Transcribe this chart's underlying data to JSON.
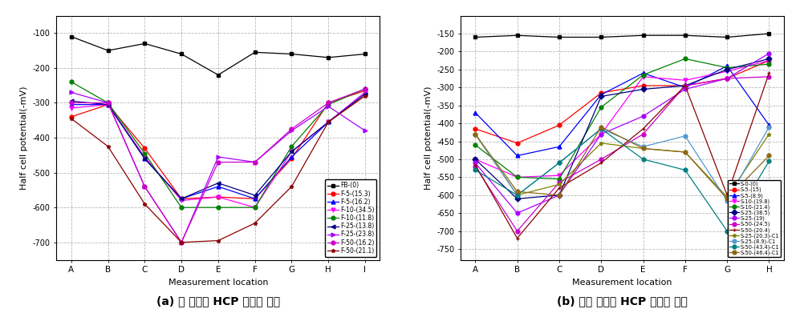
{
  "chart_a": {
    "xlabel": "Measurement location",
    "ylabel": "Half cell potential(-mV)",
    "x_labels": [
      "A",
      "B",
      "C",
      "D",
      "E",
      "F",
      "G",
      "H",
      "I"
    ],
    "ylim": [
      -750,
      -50
    ],
    "yticks": [
      -700,
      -600,
      -500,
      -400,
      -300,
      -200,
      -100
    ],
    "series": [
      {
        "label": "FB-(0)",
        "color": "black",
        "marker": "s",
        "values": [
          -110,
          -150,
          -130,
          -160,
          -220,
          -155,
          -160,
          -170,
          -160
        ]
      },
      {
        "label": "F-5-(15.3)",
        "color": "red",
        "marker": "o",
        "values": [
          -340,
          -305,
          -430,
          -575,
          -570,
          -575,
          -460,
          -300,
          -265
        ]
      },
      {
        "label": "F-5-(16.2)",
        "color": "blue",
        "marker": "^",
        "values": [
          -305,
          -305,
          -460,
          -575,
          -540,
          -575,
          -455,
          -355,
          -270
        ]
      },
      {
        "label": "F-10-(34.5)",
        "color": "magenta",
        "marker": "v",
        "values": [
          -315,
          -305,
          -455,
          -580,
          -570,
          -600,
          -440,
          -355,
          -270
        ]
      },
      {
        "label": "F-10-(11.8)",
        "color": "green",
        "marker": "o",
        "values": [
          -240,
          -300,
          -445,
          -600,
          -600,
          -600,
          -425,
          -305,
          -260
        ]
      },
      {
        "label": "F-25-(13.8)",
        "color": "#000080",
        "marker": "<",
        "values": [
          -295,
          -305,
          -460,
          -575,
          -530,
          -565,
          -440,
          -355,
          -275
        ]
      },
      {
        "label": "F-25-(23.8)",
        "color": "#aa00ff",
        "marker": ">",
        "values": [
          -270,
          -300,
          -540,
          -700,
          -455,
          -470,
          -380,
          -310,
          -380
        ]
      },
      {
        "label": "F-50-(16.2)",
        "color": "#cc00cc",
        "marker": "o",
        "values": [
          -300,
          -300,
          -540,
          -700,
          -470,
          -470,
          -375,
          -300,
          -260
        ]
      },
      {
        "label": "F-50-(21.1)",
        "color": "#8B0000",
        "marker": "*",
        "values": [
          -345,
          -425,
          -590,
          -700,
          -695,
          -645,
          -540,
          -355,
          -280
        ]
      }
    ]
  },
  "chart_b": {
    "xlabel": "Measurement location",
    "ylabel": "Half cell potential(-mV)",
    "x_labels": [
      "A",
      "B",
      "C",
      "D",
      "E",
      "F",
      "G",
      "H"
    ],
    "ylim": [
      -780,
      -100
    ],
    "yticks": [
      -750,
      -700,
      -650,
      -600,
      -550,
      -500,
      -450,
      -400,
      -350,
      -300,
      -250,
      -200,
      -150
    ],
    "series": [
      {
        "label": "S-0-(0)",
        "color": "black",
        "marker": "s",
        "values": [
          -160,
          -155,
          -160,
          -160,
          -155,
          -155,
          -160,
          -150
        ]
      },
      {
        "label": "S-5-(15)",
        "color": "red",
        "marker": "o",
        "values": [
          -415,
          -455,
          -405,
          -315,
          -295,
          -295,
          -275,
          -225
        ]
      },
      {
        "label": "S-5-(8.9)",
        "color": "blue",
        "marker": "^",
        "values": [
          -370,
          -490,
          -465,
          -320,
          -260,
          -300,
          -240,
          -405
        ]
      },
      {
        "label": "S-10-(19.8)",
        "color": "magenta",
        "marker": "v",
        "values": [
          -500,
          -550,
          -545,
          -430,
          -270,
          -280,
          -255,
          -225
        ]
      },
      {
        "label": "S-10-(21.4)",
        "color": "green",
        "marker": "o",
        "values": [
          -460,
          -550,
          -555,
          -355,
          -265,
          -220,
          -245,
          -235
        ]
      },
      {
        "label": "S-25-(38.5)",
        "color": "#000080",
        "marker": "D",
        "values": [
          -500,
          -610,
          -600,
          -325,
          -305,
          -295,
          -250,
          -220
        ]
      },
      {
        "label": "S-25-(19)",
        "color": "#aa00ff",
        "marker": "o",
        "values": [
          -510,
          -650,
          -600,
          -430,
          -380,
          -305,
          -275,
          -205
        ]
      },
      {
        "label": "S-50-(24.5)",
        "color": "#cc00cc",
        "marker": "o",
        "values": [
          -520,
          -700,
          -565,
          -500,
          -430,
          -295,
          -275,
          -270
        ]
      },
      {
        "label": "S-50-(20.4)",
        "color": "#8B0000",
        "marker": "+",
        "values": [
          -515,
          -720,
          -580,
          -510,
          -415,
          -295,
          -600,
          -260
        ]
      },
      {
        "label": "S-25-(20.3)-C1",
        "color": "#808000",
        "marker": "*",
        "values": [
          -430,
          -600,
          -570,
          -455,
          -470,
          -480,
          -605,
          -430
        ]
      },
      {
        "label": "S-25-(8.9)-C1",
        "color": "#5599cc",
        "marker": "o",
        "values": [
          -430,
          -600,
          -510,
          -415,
          -465,
          -435,
          -615,
          -410
        ]
      },
      {
        "label": "S-50-(43.4)-C1",
        "color": "#008080",
        "marker": "o",
        "values": [
          -530,
          -600,
          -510,
          -415,
          -500,
          -530,
          -700,
          -505
        ]
      },
      {
        "label": "S-50-(46.4)-C1",
        "color": "#8B6914",
        "marker": "o",
        "values": [
          -430,
          -590,
          -600,
          -410,
          -470,
          -480,
          -610,
          -490
        ]
      }
    ]
  },
  "caption_a": "(a) 휨 실험체 HCP 부위별 측정",
  "caption_b": "(b) 전단 실험체 HCP 부위별 측정",
  "figure_bg": "white",
  "grid_style": "--",
  "grid_color": "#888888",
  "grid_alpha": 0.6
}
